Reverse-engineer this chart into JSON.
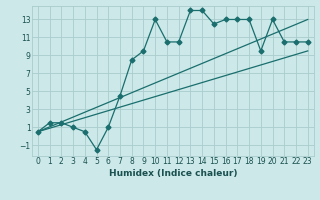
{
  "xlabel": "Humidex (Indice chaleur)",
  "bg_color": "#cce8e8",
  "line_color": "#1a6e6e",
  "grid_color": "#aacccc",
  "xlim": [
    -0.5,
    23.5
  ],
  "ylim": [
    -2.2,
    14.5
  ],
  "xticks": [
    0,
    1,
    2,
    3,
    4,
    5,
    6,
    7,
    8,
    9,
    10,
    11,
    12,
    13,
    14,
    15,
    16,
    17,
    18,
    19,
    20,
    21,
    22,
    23
  ],
  "yticks": [
    -1,
    1,
    3,
    5,
    7,
    9,
    11,
    13
  ],
  "series1_x": [
    0,
    1,
    2,
    3,
    4,
    5,
    6,
    7,
    8,
    9,
    10,
    11,
    12,
    13,
    14,
    15,
    16,
    17,
    18,
    19,
    20,
    21,
    22,
    23
  ],
  "series1_y": [
    0.5,
    1.5,
    1.5,
    1.0,
    0.5,
    -1.5,
    1.0,
    4.5,
    8.5,
    9.5,
    13.0,
    10.5,
    10.5,
    14.0,
    14.0,
    12.5,
    13.0,
    13.0,
    13.0,
    9.5,
    13.0,
    10.5,
    10.5,
    10.5
  ],
  "series2_x": [
    0,
    23
  ],
  "series2_y": [
    0.5,
    9.5
  ],
  "series3_x": [
    0,
    23
  ],
  "series3_y": [
    0.5,
    13.0
  ]
}
